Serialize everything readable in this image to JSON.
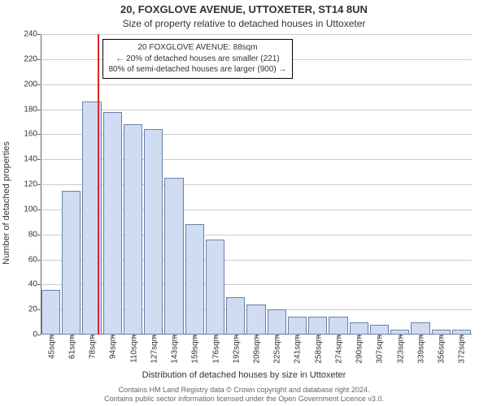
{
  "title": "20, FOXGLOVE AVENUE, UTTOXETER, ST14 8UN",
  "subtitle": "Size of property relative to detached houses in Uttoxeter",
  "ylabel": "Number of detached properties",
  "xlabel": "Distribution of detached houses by size in Uttoxeter",
  "caption_line1": "Contains HM Land Registry data © Crown copyright and database right 2024.",
  "caption_line2": "Contains public sector information licensed under the Open Government Licence v3.0.",
  "chart": {
    "type": "histogram",
    "background_color": "#ffffff",
    "grid_color": "#cccccc",
    "axis_color": "#666666",
    "bar_fill": "#cfdcf2",
    "bar_border": "#6b7fa8",
    "refline_color": "#d62728",
    "font_family": "Arial",
    "title_fontsize": 13,
    "subtitle_fontsize": 12,
    "label_fontsize": 11,
    "tick_fontsize": 10,
    "annotation_fontsize": 10,
    "ylim": [
      0,
      240
    ],
    "ytick_step": 20,
    "xticks": [
      "45sqm",
      "61sqm",
      "78sqm",
      "94sqm",
      "110sqm",
      "127sqm",
      "143sqm",
      "159sqm",
      "176sqm",
      "192sqm",
      "209sqm",
      "225sqm",
      "241sqm",
      "258sqm",
      "274sqm",
      "290sqm",
      "307sqm",
      "323sqm",
      "339sqm",
      "356sqm",
      "372sqm"
    ],
    "values": [
      36,
      115,
      186,
      178,
      168,
      164,
      125,
      88,
      76,
      30,
      24,
      20,
      14,
      14,
      14,
      10,
      8,
      4,
      10,
      4,
      4
    ],
    "bar_width_ratio": 0.92,
    "reference": {
      "position_ratio": 0.133,
      "line1": "20 FOXGLOVE AVENUE: 88sqm",
      "line2": "← 20% of detached houses are smaller (221)",
      "line3": "80% of semi-detached houses are larger (900) →"
    }
  }
}
